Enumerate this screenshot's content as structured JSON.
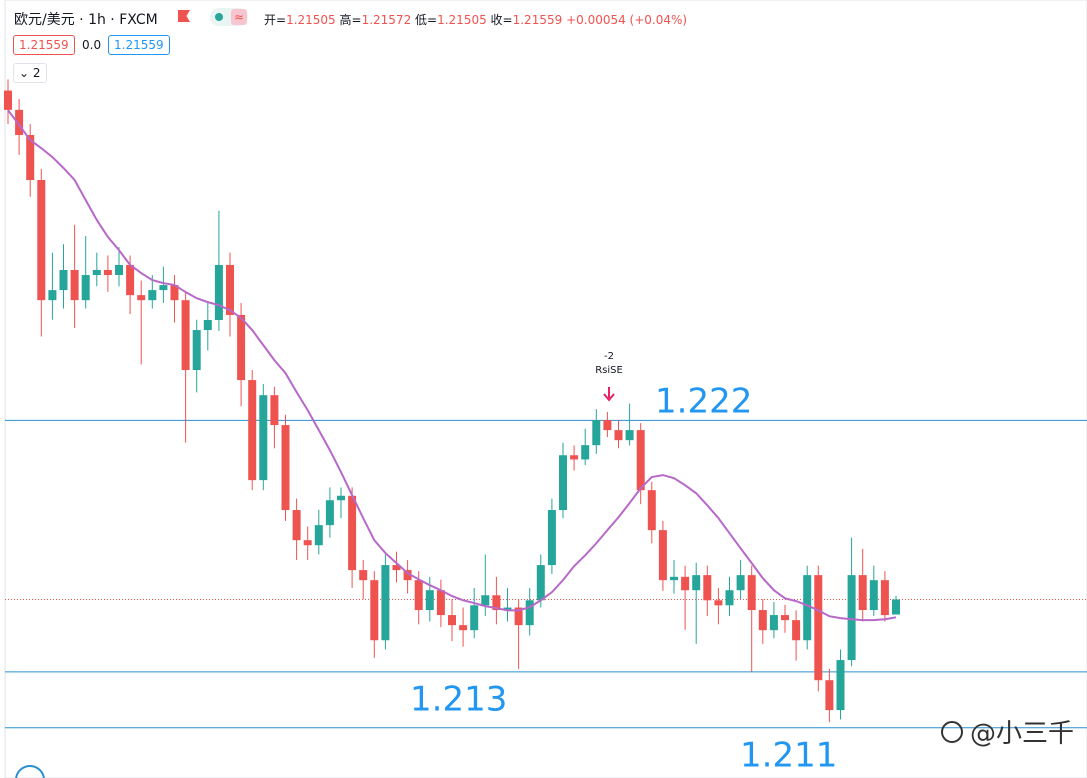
{
  "header": {
    "symbol": "欧元/美元",
    "interval": "1h",
    "exchange": "FXCM",
    "open_label": "开=",
    "high_label": "高=",
    "low_label": "低=",
    "close_label": "收=",
    "change": "+0.00054 (+0.04%)",
    "spread": "0.0",
    "indicator_count": "2"
  },
  "chart_data": {
    "type": "candlestick",
    "ylim": [
      1.2092,
      1.234
    ],
    "open": [
      1.2338,
      1.23311,
      1.23221,
      1.2306,
      1.2263,
      1.22666,
      1.22738,
      1.2263,
      1.2272,
      1.22738,
      1.2272,
      1.22756,
      1.22648,
      1.2263,
      1.22666,
      1.22684,
      1.2263,
      1.2238,
      1.22523,
      1.22559,
      1.22756,
      1.22577,
      1.22344,
      1.21986,
      1.2229,
      1.22183,
      1.21879,
      1.21771,
      1.21753,
      1.21825,
      1.21914,
      1.2193,
      1.21664,
      1.21628,
      1.21413,
      1.21682,
      1.21664,
      1.21628,
      1.21521,
      1.21592,
      1.21503,
      1.21467,
      1.21449,
      1.21538,
      1.21574,
      1.21521,
      1.2153,
      1.21467,
      1.21556,
      1.21682,
      1.21879,
      1.22075,
      1.2206,
      1.22111,
      1.22201,
      1.22165,
      1.22129,
      1.22165,
      1.2195,
      1.21807,
      1.21628,
      1.2164,
      1.21592,
      1.21646,
      1.21556,
      1.21538,
      1.21592,
      1.21646,
      1.21521,
      1.21449,
      1.21503,
      1.21485,
      1.21413,
      1.21646,
      1.2127,
      1.21163,
      1.21342,
      1.21646,
      1.21521,
      1.21628,
      1.21505
    ],
    "high": [
      1.2342,
      1.2335,
      1.2326,
      1.231,
      1.228,
      1.2283,
      1.229,
      1.2286,
      1.228,
      1.2279,
      1.2282,
      1.2279,
      1.227,
      1.2272,
      1.2275,
      1.2272,
      1.2266,
      1.2256,
      1.2262,
      1.2295,
      1.228,
      1.2262,
      1.2238,
      1.2233,
      1.2232,
      1.2222,
      1.2192,
      1.2182,
      1.2188,
      1.2196,
      1.2196,
      1.2196,
      1.217,
      1.2166,
      1.2172,
      1.2173,
      1.217,
      1.2166,
      1.2164,
      1.2163,
      1.2156,
      1.2153,
      1.216,
      1.2172,
      1.2164,
      1.216,
      1.2156,
      1.216,
      1.2172,
      1.2192,
      1.2212,
      1.2211,
      1.2217,
      1.2224,
      1.2223,
      1.222,
      1.2226,
      1.2219,
      1.2198,
      1.2184,
      1.217,
      1.2168,
      1.2169,
      1.2168,
      1.216,
      1.2164,
      1.217,
      1.2168,
      1.2156,
      1.2155,
      1.2154,
      1.2152,
      1.2168,
      1.2168,
      1.2131,
      1.2138,
      1.2178,
      1.2174,
      1.2168,
      1.2166,
      1.21572
    ],
    "low": [
      1.2326,
      1.2315,
      1.23,
      1.225,
      1.2256,
      1.226,
      1.2253,
      1.226,
      1.2268,
      1.2266,
      1.2268,
      1.2258,
      1.224,
      1.226,
      1.2262,
      1.2255,
      1.2212,
      1.223,
      1.2245,
      1.2252,
      1.225,
      1.2225,
      1.2195,
      1.2195,
      1.221,
      1.2184,
      1.217,
      1.217,
      1.2172,
      1.2178,
      1.2185,
      1.216,
      1.2156,
      1.2135,
      1.2138,
      1.2162,
      1.2158,
      1.2147,
      1.2148,
      1.2146,
      1.2141,
      1.2139,
      1.2142,
      1.215,
      1.2147,
      1.2148,
      1.2131,
      1.2143,
      1.2153,
      1.2165,
      1.2185,
      1.2202,
      1.2204,
      1.2208,
      1.2214,
      1.221,
      1.2211,
      1.219,
      1.2176,
      1.2159,
      1.2158,
      1.2145,
      1.214,
      1.215,
      1.2147,
      1.215,
      1.2156,
      1.213,
      1.214,
      1.2142,
      1.2144,
      1.2134,
      1.2138,
      1.2123,
      1.2112,
      1.2113,
      1.2132,
      1.2148,
      1.215,
      1.2148,
      1.21505
    ],
    "close": [
      1.23311,
      1.23221,
      1.2306,
      1.2263,
      1.22666,
      1.22738,
      1.2263,
      1.2272,
      1.22738,
      1.2272,
      1.22756,
      1.22648,
      1.2263,
      1.22666,
      1.22684,
      1.2263,
      1.2238,
      1.22523,
      1.22559,
      1.22756,
      1.22577,
      1.22344,
      1.21986,
      1.2229,
      1.22183,
      1.21879,
      1.21771,
      1.21753,
      1.21825,
      1.21914,
      1.2193,
      1.21664,
      1.21628,
      1.21413,
      1.21682,
      1.21664,
      1.21628,
      1.21521,
      1.21592,
      1.21503,
      1.21467,
      1.21449,
      1.21538,
      1.21574,
      1.21521,
      1.2153,
      1.21467,
      1.21556,
      1.21682,
      1.21879,
      1.22075,
      1.2206,
      1.22111,
      1.22201,
      1.22165,
      1.22129,
      1.22165,
      1.2195,
      1.21807,
      1.21628,
      1.2164,
      1.21592,
      1.21646,
      1.21556,
      1.21538,
      1.21592,
      1.21646,
      1.21521,
      1.21449,
      1.21503,
      1.21485,
      1.21413,
      1.21646,
      1.2127,
      1.21163,
      1.21342,
      1.21646,
      1.21521,
      1.21628,
      1.21503,
      1.21559
    ],
    "up_color": "#26a69a",
    "down_color": "#ef5350",
    "ma": {
      "color": "#b868c8",
      "values": [
        1.2331,
        1.23257,
        1.23203,
        1.23174,
        1.23142,
        1.23103,
        1.2306,
        1.22988,
        1.22917,
        1.22856,
        1.22809,
        1.22756,
        1.22727,
        1.22702,
        1.22691,
        1.22684,
        1.22659,
        1.22637,
        1.22623,
        1.22612,
        1.22594,
        1.22566,
        1.22523,
        1.22469,
        1.22415,
        1.22369,
        1.22301,
        1.22236,
        1.22165,
        1.22093,
        1.22015,
        1.21932,
        1.2185,
        1.21771,
        1.21725,
        1.21689,
        1.21653,
        1.21631,
        1.2161,
        1.21592,
        1.21571,
        1.21556,
        1.21546,
        1.21535,
        1.21528,
        1.2152,
        1.2152,
        1.21531,
        1.21556,
        1.21585,
        1.21628,
        1.21678,
        1.21717,
        1.2176,
        1.21807,
        1.21853,
        1.21904,
        1.21957,
        1.21997,
        1.22004,
        1.21993,
        1.21968,
        1.21939,
        1.21896,
        1.2185,
        1.21796,
        1.21742,
        1.21689,
        1.21635,
        1.21592,
        1.21563,
        1.21553,
        1.21538,
        1.2152,
        1.21499,
        1.21492,
        1.21488,
        1.21485,
        1.21485,
        1.21488,
        1.21495
      ]
    },
    "levels": [
      1.222,
      1.213,
      1.211
    ],
    "level_color": "#2a8fd0",
    "signal": {
      "label": "-2",
      "name": "RsiSE"
    },
    "watermark": "@小三千"
  }
}
